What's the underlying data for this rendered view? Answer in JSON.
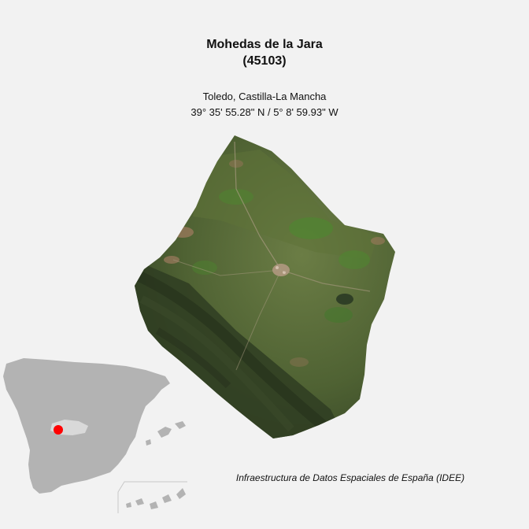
{
  "map": {
    "title": "Mohedas de la Jara",
    "code": "(45103)",
    "region": "Toledo, Castilla-La Mancha",
    "coordinates": "39° 35' 55.28\" N / 5° 8' 59.93\" W",
    "source": "Infraestructura de Datos Espaciales de España (IDEE)"
  },
  "colors": {
    "background": "#f2f2f2",
    "inset_land": "#b3b3b3",
    "inset_highlight_region": "#d9d9d9",
    "location_marker": "#ff0000",
    "terrain_dark": "#2f3d22",
    "terrain_mid": "#4f6233",
    "terrain_light": "#6b7d45",
    "terrain_soil": "#9c7a5e"
  }
}
